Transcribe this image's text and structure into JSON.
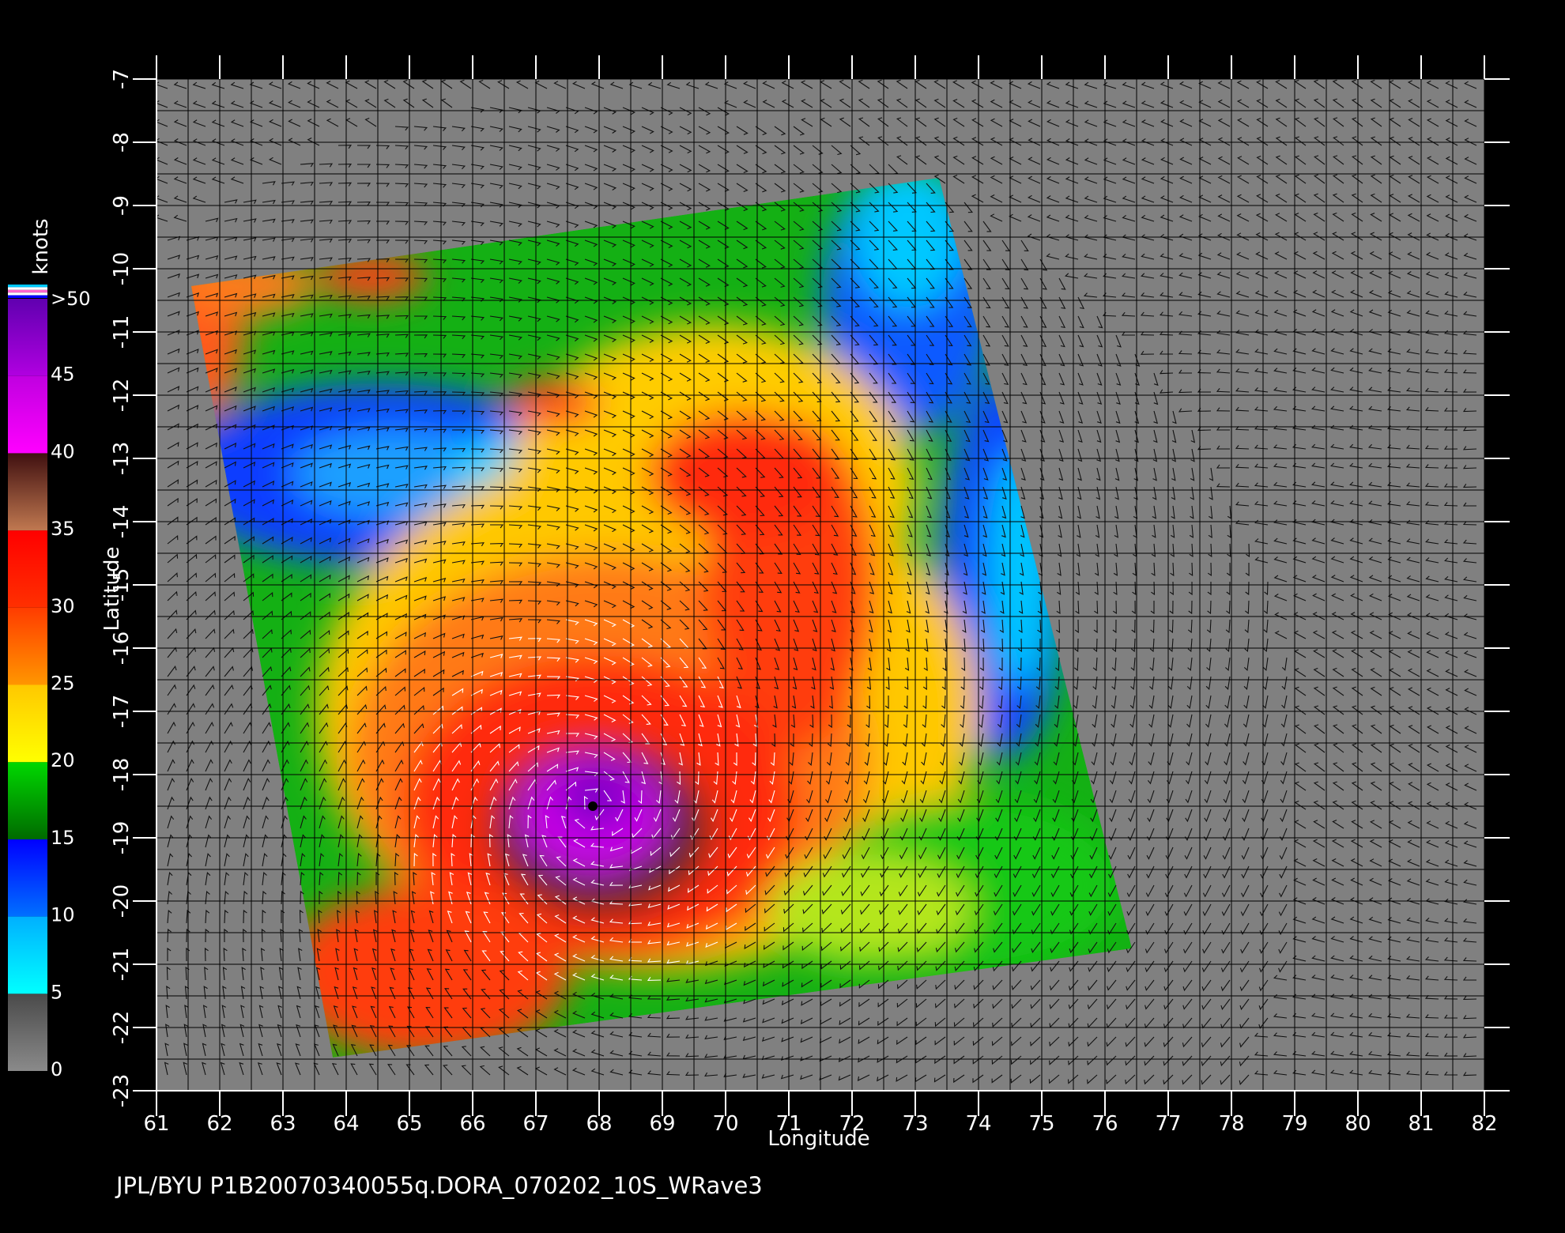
{
  "footer_text": "JPL/BYU  P1B20070340055q.DORA_070202_10S_WRave3",
  "map": {
    "x_axis_label": "Longitude",
    "y_axis_label": "Latitude",
    "lon_range": [
      61,
      82
    ],
    "lat_range": [
      -23,
      -7
    ],
    "lon_ticks": [
      "61",
      "62",
      "63",
      "64",
      "65",
      "66",
      "67",
      "68",
      "69",
      "70",
      "71",
      "72",
      "73",
      "74",
      "75",
      "76",
      "77",
      "78",
      "79",
      "80",
      "81",
      "82"
    ],
    "lat_ticks": [
      "-7",
      "-8",
      "-9",
      "-10",
      "-11",
      "-12",
      "-13",
      "-14",
      "-15",
      "-16",
      "-17",
      "-18",
      "-19",
      "-20",
      "-21",
      "-22",
      "-23"
    ],
    "background_color": "#808080",
    "storm_center": {
      "lon": 67.9,
      "lat": -18.5
    }
  },
  "colorbar": {
    "unit_label": "knots",
    "tick_labels": [
      ">50",
      "45",
      "40",
      "35",
      "30",
      "25",
      "20",
      "15",
      "10",
      "5",
      "0"
    ],
    "bands": [
      {
        "from": 0,
        "to": 5,
        "top": "#4a4a4a",
        "bottom": "#8a8a8a"
      },
      {
        "from": 5,
        "to": 10,
        "top": "#00b0ff",
        "bottom": "#00ffff"
      },
      {
        "from": 10,
        "to": 15,
        "top": "#0000ff",
        "bottom": "#0070ff"
      },
      {
        "from": 15,
        "to": 20,
        "top": "#00d800",
        "bottom": "#006a00"
      },
      {
        "from": 20,
        "to": 25,
        "top": "#ffc800",
        "bottom": "#ffff00"
      },
      {
        "from": 25,
        "to": 30,
        "top": "#ff3c00",
        "bottom": "#ff9600"
      },
      {
        "from": 30,
        "to": 35,
        "top": "#ff0000",
        "bottom": "#ff3000"
      },
      {
        "from": 35,
        "to": 40,
        "top": "#401010",
        "bottom": "#c07850"
      },
      {
        "from": 40,
        "to": 45,
        "top": "#c000e0",
        "bottom": "#ff00ff"
      },
      {
        "from": 45,
        "to": 50,
        "top": "#6000b0",
        "bottom": "#b000e0"
      }
    ]
  }
}
